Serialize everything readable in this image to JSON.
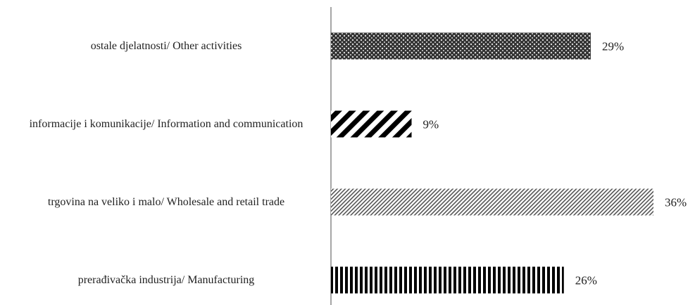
{
  "chart_data": {
    "type": "bar",
    "orientation": "horizontal",
    "categories": [
      "ostale djelatnosti/ Other activities",
      "informacije i komunikacije/ Information and communication",
      "trgovina na veliko i malo/ Wholesale and retail trade",
      "prerađivačka industrija/ Manufacturing"
    ],
    "values": [
      29,
      9,
      36,
      26
    ],
    "value_labels": [
      "29%",
      "9%",
      "36%",
      "26%"
    ],
    "xlim": [
      0,
      36
    ]
  }
}
